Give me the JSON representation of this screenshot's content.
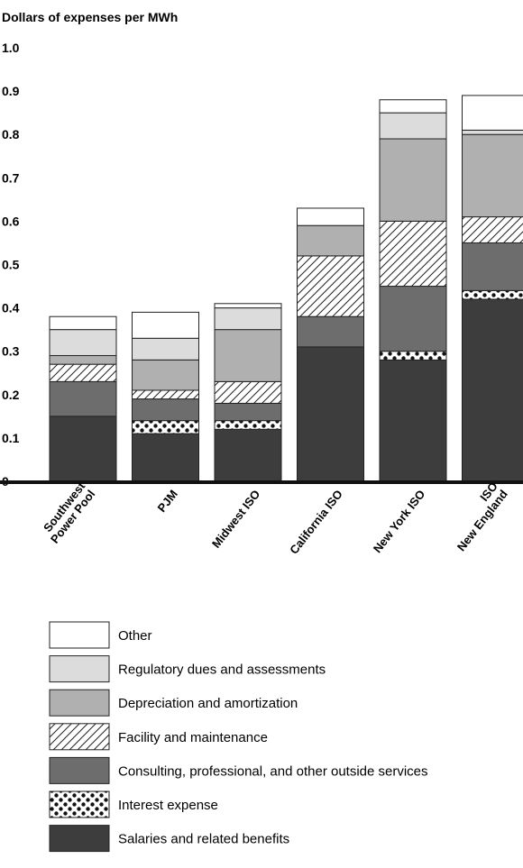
{
  "chart_data": {
    "type": "bar",
    "stacked": true,
    "ylabel": "Dollars of expenses per MWh",
    "ylim": [
      0,
      1.0
    ],
    "yticks": [
      "0",
      "0.1",
      "0.2",
      "0.3",
      "0.4",
      "0.5",
      "0.6",
      "0.7",
      "0.8",
      "0.9",
      "1.0"
    ],
    "categories": [
      {
        "lines": [
          "Southwest",
          "Power Pool"
        ]
      },
      {
        "lines": [
          "PJM"
        ]
      },
      {
        "lines": [
          "Midwest ISO"
        ]
      },
      {
        "lines": [
          "California ISO"
        ]
      },
      {
        "lines": [
          "New York ISO"
        ]
      },
      {
        "lines": [
          "ISO",
          "New England"
        ]
      }
    ],
    "series": [
      {
        "name": "Salaries and related benefits",
        "fill": "#3d3d3d",
        "pattern": "solid",
        "values": [
          0.15,
          0.11,
          0.12,
          0.31,
          0.28,
          0.42
        ]
      },
      {
        "name": "Interest expense",
        "fill": "#ffffff",
        "pattern": "dots",
        "values": [
          0.0,
          0.03,
          0.02,
          0.0,
          0.02,
          0.02
        ]
      },
      {
        "name": "Consulting, professional, and other outside services",
        "fill": "#6d6d6d",
        "pattern": "solid",
        "values": [
          0.08,
          0.05,
          0.04,
          0.07,
          0.15,
          0.11
        ]
      },
      {
        "name": "Facility and maintenance",
        "fill": "#ffffff",
        "pattern": "hatch",
        "values": [
          0.04,
          0.02,
          0.05,
          0.14,
          0.15,
          0.06
        ]
      },
      {
        "name": "Depreciation and amortization",
        "fill": "#b0b0b0",
        "pattern": "solid",
        "values": [
          0.02,
          0.07,
          0.12,
          0.07,
          0.19,
          0.19
        ]
      },
      {
        "name": "Regulatory dues and assessments",
        "fill": "#dcdcdc",
        "pattern": "solid",
        "values": [
          0.06,
          0.05,
          0.05,
          0.0,
          0.06,
          0.01
        ]
      },
      {
        "name": "Other",
        "fill": "#ffffff",
        "pattern": "solid",
        "values": [
          0.03,
          0.06,
          0.01,
          0.04,
          0.03,
          0.08
        ]
      }
    ],
    "legend_order": [
      "Other",
      "Regulatory dues and assessments",
      "Depreciation and amortization",
      "Facility and maintenance",
      "Consulting, professional, and other outside services",
      "Interest expense",
      "Salaries and related benefits"
    ],
    "legend_position": "bottom",
    "grid": false
  }
}
